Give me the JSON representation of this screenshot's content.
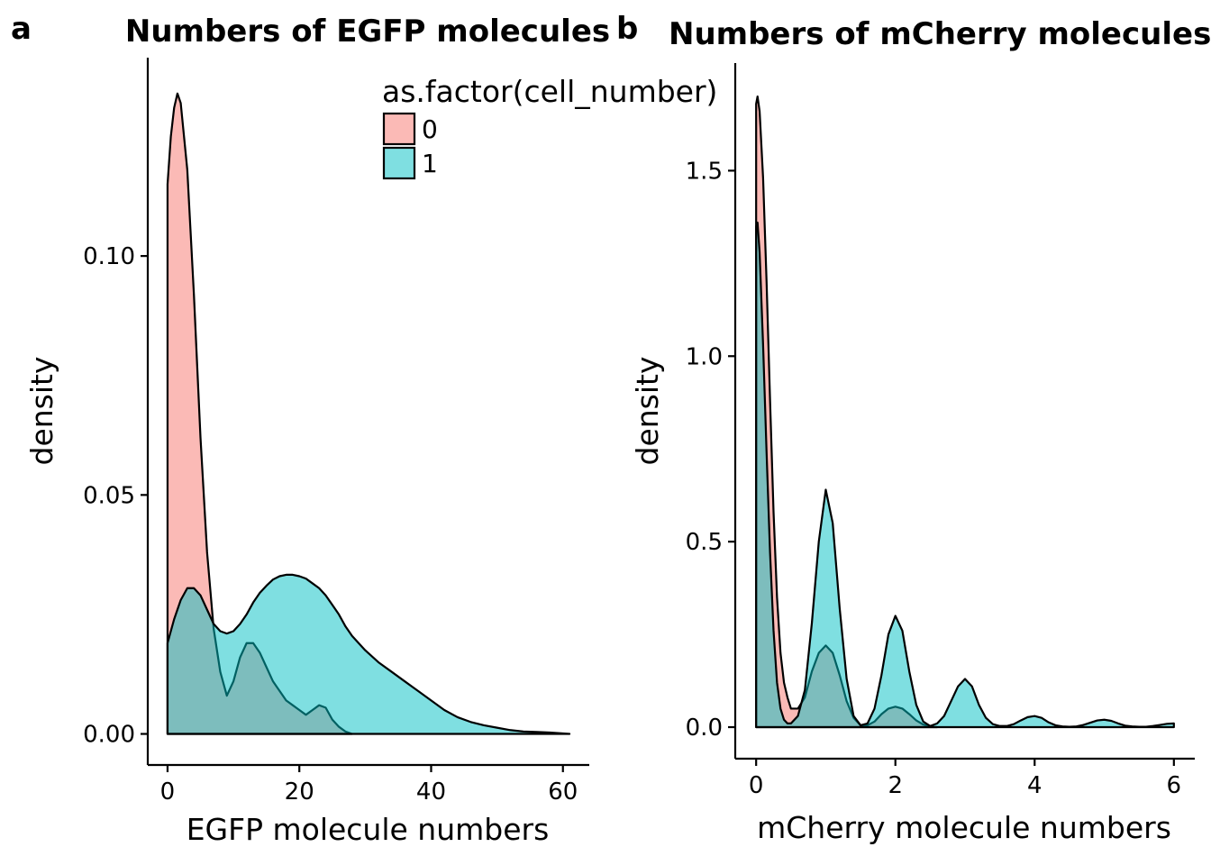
{
  "colors": {
    "group0": "#F8766D",
    "group1": "#00BFC4",
    "outline": "#000000"
  },
  "legend": {
    "title": "as.factor(cell_number)",
    "items": [
      {
        "label": "0",
        "color": "#F8766D"
      },
      {
        "label": "1",
        "color": "#00BFC4"
      }
    ]
  },
  "chart_data": [
    {
      "tag": "a",
      "type": "area",
      "title": "Numbers of EGFP molecules",
      "xlabel": "EGFP molecule numbers",
      "ylabel": "density",
      "xlim": [
        -3,
        64
      ],
      "ylim": [
        -0.0065,
        0.1415
      ],
      "x_ticks": [
        0,
        20,
        40,
        60
      ],
      "y_ticks": [
        0.0,
        0.05,
        0.1
      ],
      "y_tick_labels": [
        "0.00",
        "0.05",
        "0.10"
      ],
      "grid": false,
      "legend_position": "top-center",
      "series": [
        {
          "name": "0",
          "x": [
            0,
            0.5,
            1,
            1.5,
            2,
            3,
            4,
            5,
            6,
            7,
            8,
            9,
            10,
            11,
            12,
            13,
            14,
            15,
            16,
            17,
            18,
            19,
            20,
            21,
            22,
            23,
            24,
            25,
            26,
            27,
            28
          ],
          "y": [
            0.115,
            0.125,
            0.131,
            0.134,
            0.132,
            0.118,
            0.092,
            0.062,
            0.038,
            0.022,
            0.013,
            0.008,
            0.011,
            0.016,
            0.019,
            0.019,
            0.017,
            0.014,
            0.011,
            0.009,
            0.007,
            0.006,
            0.005,
            0.004,
            0.005,
            0.006,
            0.0055,
            0.003,
            0.0015,
            0.0005,
            0.0
          ]
        },
        {
          "name": "1",
          "x": [
            0,
            1,
            2,
            3,
            4,
            5,
            6,
            7,
            8,
            9,
            10,
            11,
            12,
            13,
            14,
            15,
            16,
            17,
            18,
            19,
            20,
            21,
            22,
            23,
            24,
            25,
            26,
            27,
            28,
            30,
            32,
            34,
            36,
            38,
            40,
            42,
            44,
            46,
            48,
            50,
            52,
            54,
            56,
            58,
            60,
            61
          ],
          "y": [
            0.019,
            0.024,
            0.028,
            0.0305,
            0.0305,
            0.029,
            0.026,
            0.023,
            0.0215,
            0.021,
            0.0215,
            0.023,
            0.025,
            0.0275,
            0.0295,
            0.031,
            0.0323,
            0.033,
            0.0333,
            0.0333,
            0.033,
            0.0325,
            0.0315,
            0.0305,
            0.029,
            0.027,
            0.025,
            0.0225,
            0.0205,
            0.0175,
            0.015,
            0.013,
            0.011,
            0.009,
            0.007,
            0.005,
            0.0035,
            0.0025,
            0.0018,
            0.0013,
            0.0008,
            0.0005,
            0.0004,
            0.0003,
            0.0001,
            0.0
          ]
        }
      ]
    },
    {
      "tag": "b",
      "type": "area",
      "title": "Numbers of mCherry molecules",
      "xlabel": "mCherry molecule numbers",
      "ylabel": "density",
      "xlim": [
        -0.3,
        6.3
      ],
      "ylim": [
        -0.085,
        1.79
      ],
      "x_ticks": [
        0,
        2,
        4,
        6
      ],
      "y_ticks": [
        0.0,
        0.5,
        1.0,
        1.5
      ],
      "y_tick_labels": [
        "0.0",
        "0.5",
        "1.0",
        "1.5"
      ],
      "grid": false,
      "series": [
        {
          "name": "0",
          "x": [
            0,
            0.02,
            0.05,
            0.1,
            0.15,
            0.2,
            0.25,
            0.3,
            0.35,
            0.4,
            0.45,
            0.5,
            0.55,
            0.6,
            0.7,
            0.8,
            0.9,
            1.0,
            1.1,
            1.2,
            1.3,
            1.4,
            1.5,
            1.6,
            1.7,
            1.8,
            1.9,
            2.0,
            2.1,
            2.2,
            2.3,
            2.4,
            2.5,
            2.6
          ],
          "y": [
            1.68,
            1.7,
            1.66,
            1.48,
            1.2,
            0.88,
            0.58,
            0.35,
            0.2,
            0.12,
            0.08,
            0.05,
            0.05,
            0.05,
            0.08,
            0.15,
            0.2,
            0.22,
            0.2,
            0.14,
            0.07,
            0.025,
            0.005,
            0.005,
            0.015,
            0.035,
            0.05,
            0.055,
            0.05,
            0.035,
            0.018,
            0.007,
            0.002,
            0.0
          ]
        },
        {
          "name": "1",
          "x": [
            0,
            0.02,
            0.05,
            0.1,
            0.15,
            0.2,
            0.25,
            0.3,
            0.35,
            0.4,
            0.45,
            0.5,
            0.6,
            0.7,
            0.8,
            0.9,
            1.0,
            1.1,
            1.2,
            1.3,
            1.4,
            1.5,
            1.6,
            1.7,
            1.8,
            1.9,
            2.0,
            2.1,
            2.2,
            2.3,
            2.4,
            2.5,
            2.6,
            2.7,
            2.8,
            2.9,
            3.0,
            3.1,
            3.2,
            3.3,
            3.4,
            3.5,
            3.6,
            3.7,
            3.8,
            3.9,
            4.0,
            4.1,
            4.2,
            4.3,
            4.4,
            4.5,
            4.6,
            4.7,
            4.8,
            4.9,
            5.0,
            5.1,
            5.2,
            5.3,
            5.4,
            5.5,
            5.6,
            5.7,
            5.8,
            5.9,
            6.0
          ],
          "y": [
            1.35,
            1.36,
            1.28,
            1.03,
            0.74,
            0.47,
            0.26,
            0.12,
            0.05,
            0.02,
            0.01,
            0.01,
            0.03,
            0.1,
            0.28,
            0.5,
            0.64,
            0.55,
            0.32,
            0.13,
            0.03,
            0.005,
            0.01,
            0.05,
            0.14,
            0.25,
            0.3,
            0.26,
            0.15,
            0.06,
            0.015,
            0.003,
            0.01,
            0.03,
            0.07,
            0.11,
            0.13,
            0.11,
            0.06,
            0.025,
            0.008,
            0.003,
            0.003,
            0.008,
            0.018,
            0.027,
            0.03,
            0.025,
            0.013,
            0.005,
            0.002,
            0.001,
            0.002,
            0.006,
            0.012,
            0.018,
            0.02,
            0.017,
            0.01,
            0.004,
            0.002,
            0.001,
            0.001,
            0.003,
            0.006,
            0.009,
            0.01
          ]
        }
      ]
    }
  ]
}
